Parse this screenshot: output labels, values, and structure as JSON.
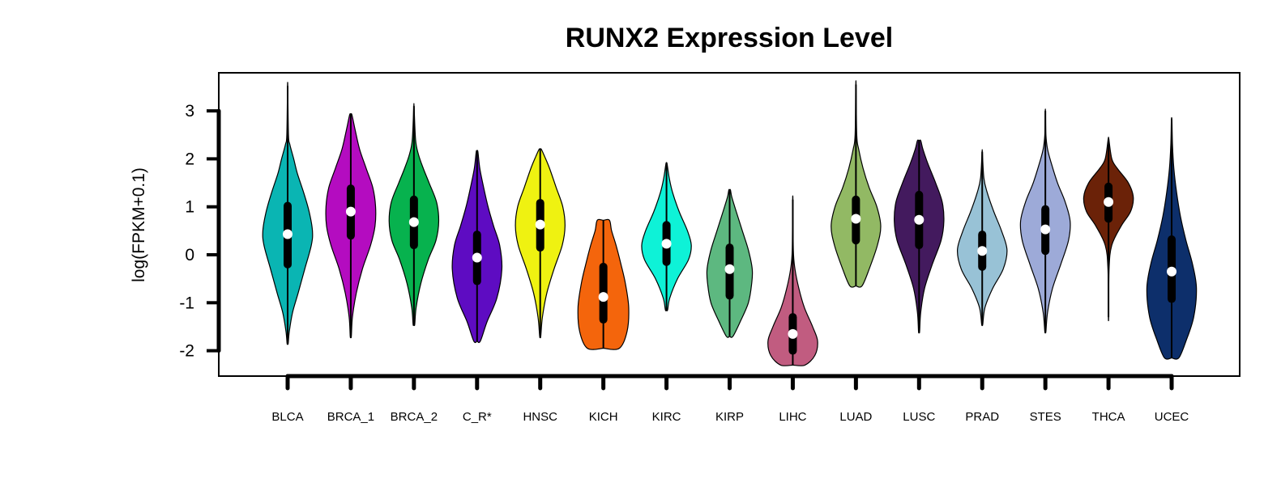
{
  "chart_data": {
    "type": "violin",
    "title": "RUNX2 Expression Level",
    "xlabel": "",
    "ylabel": "log(FPKM+0.1)",
    "ylim": [
      -2.5,
      3.75
    ],
    "yticks": [
      -2,
      -1,
      0,
      1,
      2,
      3
    ],
    "ytick_labels": [
      "-2",
      "-1",
      "0",
      "1",
      "2",
      "3"
    ],
    "grid": false,
    "legend": "none",
    "categories": [
      "BLCA",
      "BRCA_1",
      "BRCA_2",
      "C_R*",
      "HNSC",
      "KICH",
      "KIRC",
      "KIRP",
      "LIHC",
      "LUAD",
      "LUSC",
      "PRAD",
      "STES",
      "THCA",
      "UCEC"
    ],
    "series": [
      {
        "category": "BLCA",
        "color": "#0ab5b3",
        "min": -1.85,
        "max": 3.52,
        "q1": -0.2,
        "median": 0.43,
        "q3": 1.02,
        "profile": [
          [
            -1.85,
            0.02
          ],
          [
            -1.6,
            0.06
          ],
          [
            -1.2,
            0.18
          ],
          [
            -0.8,
            0.38
          ],
          [
            -0.3,
            0.62
          ],
          [
            0.2,
            0.86
          ],
          [
            0.5,
            0.9
          ],
          [
            0.9,
            0.78
          ],
          [
            1.3,
            0.58
          ],
          [
            1.7,
            0.35
          ],
          [
            2.0,
            0.22
          ],
          [
            2.3,
            0.08
          ],
          [
            2.5,
            0.03
          ],
          [
            3.52,
            0.005
          ]
        ]
      },
      {
        "category": "BRCA_1",
        "color": "#b40cc0",
        "min": -1.7,
        "max": 2.92,
        "q1": 0.4,
        "median": 0.9,
        "q3": 1.38,
        "profile": [
          [
            -1.7,
            0.02
          ],
          [
            -1.3,
            0.06
          ],
          [
            -0.8,
            0.2
          ],
          [
            -0.3,
            0.42
          ],
          [
            0.2,
            0.72
          ],
          [
            0.6,
            0.88
          ],
          [
            1.0,
            0.9
          ],
          [
            1.4,
            0.8
          ],
          [
            1.8,
            0.56
          ],
          [
            2.2,
            0.32
          ],
          [
            2.6,
            0.16
          ],
          [
            2.92,
            0.04
          ]
        ]
      },
      {
        "category": "BRCA_2",
        "color": "#07b24e",
        "min": -1.45,
        "max": 3.1,
        "q1": 0.2,
        "median": 0.68,
        "q3": 1.15,
        "profile": [
          [
            -1.45,
            0.03
          ],
          [
            -1.1,
            0.08
          ],
          [
            -0.6,
            0.25
          ],
          [
            -0.1,
            0.52
          ],
          [
            0.3,
            0.8
          ],
          [
            0.7,
            0.9
          ],
          [
            1.1,
            0.82
          ],
          [
            1.5,
            0.55
          ],
          [
            1.8,
            0.34
          ],
          [
            2.1,
            0.16
          ],
          [
            2.4,
            0.06
          ],
          [
            3.1,
            0.005
          ]
        ]
      },
      {
        "category": "C_R*",
        "color": "#5e0cc2",
        "min": -1.8,
        "max": 2.15,
        "q1": -0.55,
        "median": -0.06,
        "q3": 0.42,
        "profile": [
          [
            -1.8,
            0.12
          ],
          [
            -1.4,
            0.36
          ],
          [
            -0.9,
            0.72
          ],
          [
            -0.3,
            0.9
          ],
          [
            0.2,
            0.82
          ],
          [
            0.6,
            0.6
          ],
          [
            1.0,
            0.4
          ],
          [
            1.4,
            0.24
          ],
          [
            1.8,
            0.1
          ],
          [
            2.15,
            0.03
          ]
        ]
      },
      {
        "category": "HNSC",
        "color": "#eff211",
        "min": -1.7,
        "max": 2.2,
        "q1": 0.15,
        "median": 0.63,
        "q3": 1.08,
        "profile": [
          [
            -1.7,
            0.02
          ],
          [
            -1.3,
            0.08
          ],
          [
            -0.8,
            0.24
          ],
          [
            -0.3,
            0.5
          ],
          [
            0.2,
            0.8
          ],
          [
            0.6,
            0.9
          ],
          [
            1.0,
            0.82
          ],
          [
            1.4,
            0.58
          ],
          [
            1.8,
            0.34
          ],
          [
            2.05,
            0.16
          ],
          [
            2.2,
            0.04
          ]
        ]
      },
      {
        "category": "KICH",
        "color": "#f4650c",
        "min": -1.95,
        "max": 0.72,
        "q1": -1.35,
        "median": -0.88,
        "q3": -0.25,
        "profile": [
          [
            -1.95,
            0.58
          ],
          [
            -1.6,
            0.86
          ],
          [
            -1.1,
            0.92
          ],
          [
            -0.6,
            0.8
          ],
          [
            -0.2,
            0.64
          ],
          [
            0.2,
            0.46
          ],
          [
            0.5,
            0.3
          ],
          [
            0.72,
            0.22
          ]
        ]
      },
      {
        "category": "KIRC",
        "color": "#0ef2d7",
        "min": -1.15,
        "max": 1.9,
        "q1": -0.15,
        "median": 0.23,
        "q3": 0.62,
        "profile": [
          [
            -1.15,
            0.04
          ],
          [
            -0.9,
            0.12
          ],
          [
            -0.5,
            0.4
          ],
          [
            -0.1,
            0.8
          ],
          [
            0.2,
            0.9
          ],
          [
            0.5,
            0.76
          ],
          [
            0.9,
            0.46
          ],
          [
            1.3,
            0.22
          ],
          [
            1.6,
            0.1
          ],
          [
            1.9,
            0.02
          ]
        ]
      },
      {
        "category": "KIRP",
        "color": "#5db880",
        "min": -1.7,
        "max": 1.35,
        "q1": -0.85,
        "median": -0.3,
        "q3": 0.15,
        "profile": [
          [
            -1.7,
            0.12
          ],
          [
            -1.4,
            0.38
          ],
          [
            -1.0,
            0.68
          ],
          [
            -0.6,
            0.8
          ],
          [
            -0.3,
            0.82
          ],
          [
            0.1,
            0.68
          ],
          [
            0.5,
            0.46
          ],
          [
            0.9,
            0.24
          ],
          [
            1.2,
            0.08
          ],
          [
            1.35,
            0.03
          ]
        ]
      },
      {
        "category": "LIHC",
        "color": "#c15c80",
        "min": -2.3,
        "max": 1.15,
        "q1": -2.0,
        "median": -1.65,
        "q3": -1.3,
        "profile": [
          [
            -2.3,
            0.44
          ],
          [
            -2.1,
            0.8
          ],
          [
            -1.8,
            0.9
          ],
          [
            -1.5,
            0.72
          ],
          [
            -1.1,
            0.42
          ],
          [
            -0.7,
            0.22
          ],
          [
            -0.3,
            0.08
          ],
          [
            0.1,
            0.02
          ],
          [
            1.15,
            0.005
          ]
        ]
      },
      {
        "category": "LUAD",
        "color": "#92b964",
        "min": -0.65,
        "max": 3.55,
        "q1": 0.3,
        "median": 0.75,
        "q3": 1.15,
        "profile": [
          [
            -0.65,
            0.22
          ],
          [
            -0.3,
            0.48
          ],
          [
            0.2,
            0.78
          ],
          [
            0.6,
            0.9
          ],
          [
            1.0,
            0.76
          ],
          [
            1.4,
            0.48
          ],
          [
            1.8,
            0.26
          ],
          [
            2.2,
            0.1
          ],
          [
            2.5,
            0.03
          ],
          [
            3.55,
            0.005
          ]
        ]
      },
      {
        "category": "LUSC",
        "color": "#431a5e",
        "min": -1.6,
        "max": 2.38,
        "q1": 0.2,
        "median": 0.73,
        "q3": 1.25,
        "profile": [
          [
            -1.6,
            0.02
          ],
          [
            -1.2,
            0.06
          ],
          [
            -0.7,
            0.2
          ],
          [
            -0.2,
            0.48
          ],
          [
            0.3,
            0.8
          ],
          [
            0.7,
            0.9
          ],
          [
            1.1,
            0.84
          ],
          [
            1.5,
            0.6
          ],
          [
            1.9,
            0.32
          ],
          [
            2.2,
            0.14
          ],
          [
            2.38,
            0.06
          ]
        ]
      },
      {
        "category": "PRAD",
        "color": "#98c2d6",
        "min": -1.45,
        "max": 2.15,
        "q1": -0.25,
        "median": 0.08,
        "q3": 0.42,
        "profile": [
          [
            -1.45,
            0.02
          ],
          [
            -1.1,
            0.1
          ],
          [
            -0.7,
            0.38
          ],
          [
            -0.3,
            0.76
          ],
          [
            0.1,
            0.9
          ],
          [
            0.5,
            0.7
          ],
          [
            0.9,
            0.42
          ],
          [
            1.3,
            0.18
          ],
          [
            1.6,
            0.06
          ],
          [
            2.15,
            0.005
          ]
        ]
      },
      {
        "category": "STES",
        "color": "#9daad8",
        "min": -1.6,
        "max": 3.0,
        "q1": 0.08,
        "median": 0.53,
        "q3": 0.95,
        "profile": [
          [
            -1.6,
            0.02
          ],
          [
            -1.2,
            0.08
          ],
          [
            -0.7,
            0.26
          ],
          [
            -0.2,
            0.56
          ],
          [
            0.3,
            0.84
          ],
          [
            0.7,
            0.9
          ],
          [
            1.1,
            0.72
          ],
          [
            1.5,
            0.44
          ],
          [
            1.9,
            0.22
          ],
          [
            2.2,
            0.08
          ],
          [
            2.5,
            0.02
          ],
          [
            3.0,
            0.005
          ]
        ]
      },
      {
        "category": "THCA",
        "color": "#6b2208",
        "min": -1.3,
        "max": 2.42,
        "q1": 0.75,
        "median": 1.1,
        "q3": 1.42,
        "profile": [
          [
            -1.3,
            0.005
          ],
          [
            -0.3,
            0.02
          ],
          [
            0.2,
            0.12
          ],
          [
            0.6,
            0.46
          ],
          [
            0.9,
            0.8
          ],
          [
            1.2,
            0.9
          ],
          [
            1.5,
            0.72
          ],
          [
            1.8,
            0.32
          ],
          [
            2.0,
            0.12
          ],
          [
            2.42,
            0.01
          ]
        ]
      },
      {
        "category": "UCEC",
        "color": "#0d2f6b",
        "min": -2.15,
        "max": 2.82,
        "q1": -0.92,
        "median": -0.35,
        "q3": 0.32,
        "profile": [
          [
            -2.15,
            0.26
          ],
          [
            -1.8,
            0.52
          ],
          [
            -1.3,
            0.8
          ],
          [
            -0.7,
            0.9
          ],
          [
            -0.2,
            0.76
          ],
          [
            0.3,
            0.52
          ],
          [
            0.8,
            0.32
          ],
          [
            1.3,
            0.18
          ],
          [
            1.8,
            0.08
          ],
          [
            2.3,
            0.03
          ],
          [
            2.82,
            0.01
          ]
        ]
      }
    ]
  }
}
